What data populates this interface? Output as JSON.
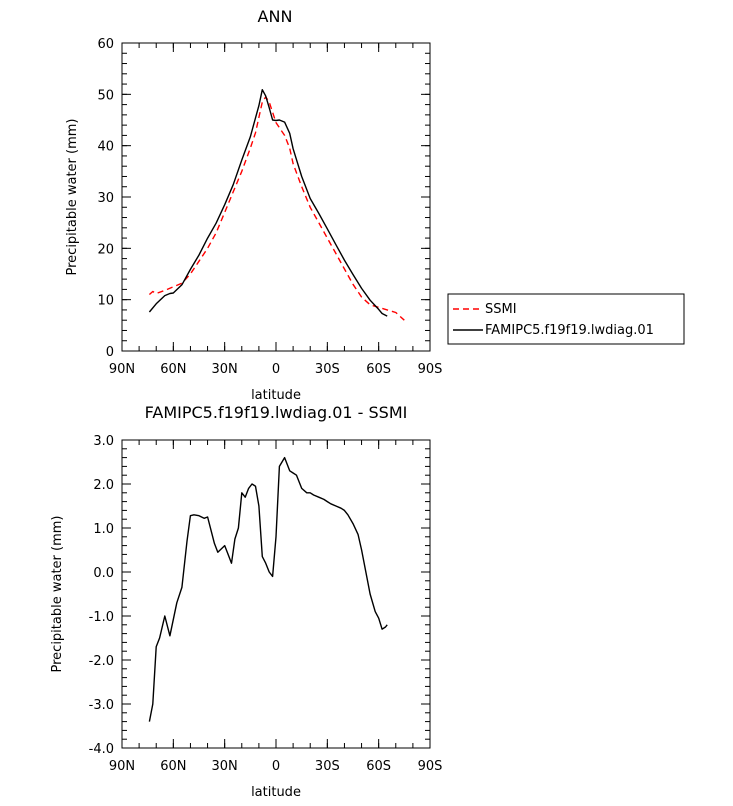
{
  "chart_data": [
    {
      "type": "line",
      "title": "ANN",
      "xlabel": "latitude",
      "ylabel": "Precipitable water (mm)",
      "xlim": [
        90,
        -90
      ],
      "ylim": [
        0,
        60
      ],
      "xticks": [
        {
          "value": 90,
          "label": "90N"
        },
        {
          "value": 60,
          "label": "60N"
        },
        {
          "value": 30,
          "label": "30N"
        },
        {
          "value": 0,
          "label": "0"
        },
        {
          "value": -30,
          "label": "30S"
        },
        {
          "value": -60,
          "label": "60S"
        },
        {
          "value": -90,
          "label": "90S"
        }
      ],
      "yticks": [
        0,
        10,
        20,
        30,
        40,
        50,
        60
      ],
      "legend": {
        "placement": "right"
      },
      "series": [
        {
          "name": "SSMI",
          "color": "#ff0000",
          "dash": "dashed",
          "x": [
            74,
            72,
            70,
            65,
            60,
            55,
            50,
            45,
            40,
            35,
            30,
            25,
            20,
            15,
            12,
            10,
            8,
            6,
            4,
            2,
            0,
            -2,
            -5,
            -8,
            -10,
            -15,
            -20,
            -25,
            -30,
            -35,
            -40,
            -45,
            -50,
            -55,
            -60,
            -65,
            -70,
            -75
          ],
          "y": [
            11,
            11.6,
            11.2,
            11.8,
            12.5,
            13.2,
            15,
            17.5,
            20,
            23,
            27,
            31,
            35,
            39.5,
            42.5,
            45.5,
            48.5,
            49.5,
            48.5,
            46.5,
            44.5,
            43.5,
            42,
            39.5,
            36.5,
            32,
            28,
            25,
            22,
            19,
            16,
            13,
            10.5,
            9,
            8.5,
            8,
            7.5,
            6
          ]
        },
        {
          "name": "FAMIPC5.f19f19.lwdiag.01",
          "color": "#000000",
          "dash": "solid",
          "x": [
            74,
            70,
            65,
            62,
            60,
            55,
            50,
            45,
            40,
            35,
            30,
            25,
            20,
            15,
            12,
            10,
            8,
            6,
            4,
            2,
            0,
            -2,
            -5,
            -8,
            -10,
            -15,
            -20,
            -25,
            -30,
            -35,
            -40,
            -45,
            -50,
            -55,
            -60,
            -62,
            -65
          ],
          "y": [
            7.6,
            9.2,
            10.8,
            11.2,
            11.3,
            12.9,
            15.9,
            18.7,
            22,
            24.9,
            28.5,
            32.4,
            37.2,
            41.7,
            45.4,
            47.8,
            50.9,
            49.7,
            47.4,
            45,
            44.9,
            45,
            44.6,
            42.4,
            39.4,
            34,
            29.7,
            26.8,
            23.8,
            20.7,
            17.7,
            14.9,
            12.2,
            9.9,
            8.1,
            7.3,
            6.8
          ]
        }
      ]
    },
    {
      "type": "line",
      "title": "FAMIPC5.f19f19.lwdiag.01 - SSMI",
      "xlabel": "latitude",
      "ylabel": "Precipitable water (mm)",
      "xlim": [
        90,
        -90
      ],
      "ylim": [
        -4,
        3
      ],
      "xticks": [
        {
          "value": 90,
          "label": "90N"
        },
        {
          "value": 60,
          "label": "60N"
        },
        {
          "value": 30,
          "label": "30N"
        },
        {
          "value": 0,
          "label": "0"
        },
        {
          "value": -30,
          "label": "30S"
        },
        {
          "value": -60,
          "label": "60S"
        },
        {
          "value": -90,
          "label": "90S"
        }
      ],
      "yticks": [
        {
          "value": 3,
          "label": "3.0"
        },
        {
          "value": 2,
          "label": "2.0"
        },
        {
          "value": 1,
          "label": "1.0"
        },
        {
          "value": 0,
          "label": "0.0"
        },
        {
          "value": -1,
          "label": "-1.0"
        },
        {
          "value": -2,
          "label": "-2.0"
        },
        {
          "value": -3,
          "label": "-3.0"
        },
        {
          "value": -4,
          "label": "-4.0"
        }
      ],
      "series": [
        {
          "color": "#000000",
          "dash": "solid",
          "x": [
            74,
            72,
            70,
            68,
            65,
            62,
            58,
            55,
            52,
            50,
            48,
            45,
            42,
            40,
            38,
            36,
            34,
            30,
            28,
            26,
            24,
            22,
            20,
            18,
            16,
            14,
            12,
            10,
            8,
            6,
            4,
            2,
            0,
            -2,
            -5,
            -8,
            -10,
            -12,
            -15,
            -18,
            -20,
            -22,
            -25,
            -28,
            -30,
            -32,
            -35,
            -38,
            -40,
            -42,
            -45,
            -48,
            -50,
            -53,
            -55,
            -58,
            -60,
            -62,
            -64,
            -65
          ],
          "y": [
            -3.4,
            -3.0,
            -1.7,
            -1.5,
            -1.0,
            -1.45,
            -0.7,
            -0.35,
            0.7,
            1.28,
            1.3,
            1.28,
            1.22,
            1.25,
            0.95,
            0.65,
            0.45,
            0.6,
            0.4,
            0.2,
            0.75,
            1.0,
            1.8,
            1.7,
            1.9,
            2.0,
            1.95,
            1.5,
            0.35,
            0.2,
            0,
            -0.1,
            0.8,
            2.4,
            2.6,
            2.3,
            2.25,
            2.2,
            1.9,
            1.8,
            1.8,
            1.75,
            1.7,
            1.65,
            1.6,
            1.55,
            1.5,
            1.45,
            1.4,
            1.3,
            1.1,
            0.85,
            0.5,
            -0.1,
            -0.5,
            -0.9,
            -1.05,
            -1.3,
            -1.25,
            -1.2
          ]
        }
      ]
    }
  ]
}
